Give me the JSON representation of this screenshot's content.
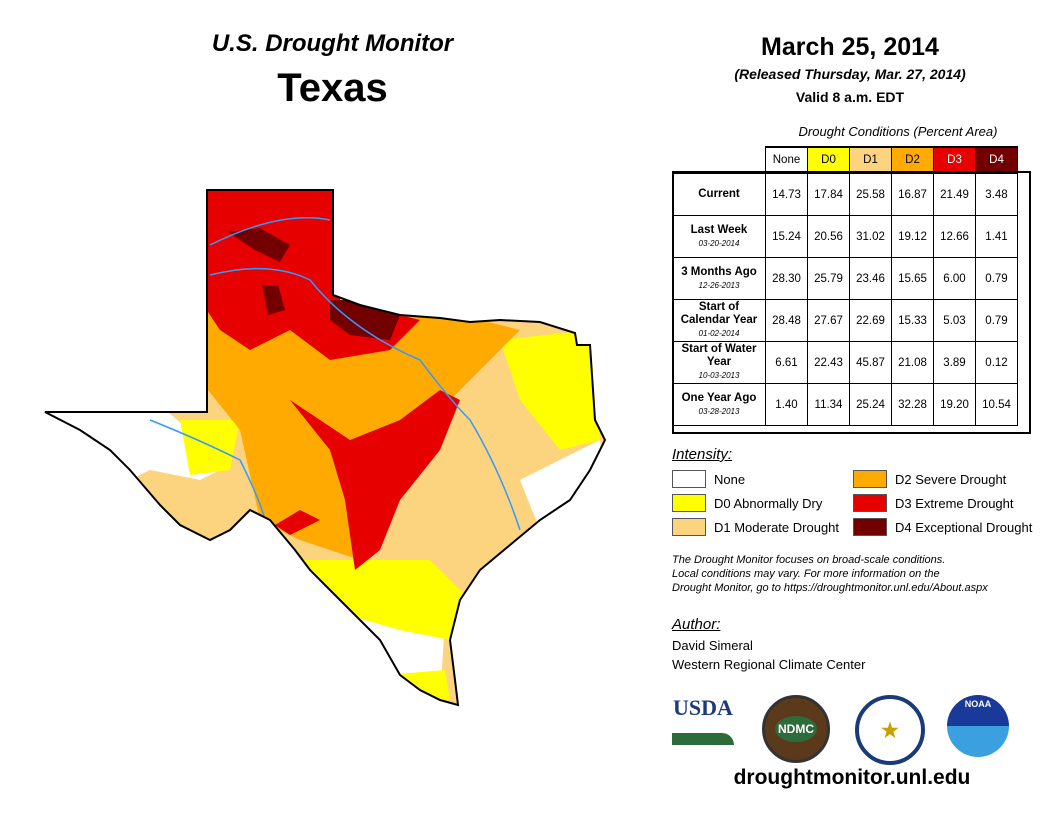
{
  "header": {
    "title": "U.S. Drought Monitor",
    "state": "Texas",
    "date": "March 25, 2014",
    "released": "(Released Thursday, Mar. 27, 2014)",
    "valid": "Valid 8 a.m. EDT"
  },
  "table": {
    "caption": "Drought Conditions (Percent Area)",
    "columns": [
      "None",
      "D0",
      "D1",
      "D2",
      "D3",
      "D4"
    ],
    "rows": [
      {
        "label": "Current",
        "date": "",
        "values": [
          "14.73",
          "17.84",
          "25.58",
          "16.87",
          "21.49",
          "3.48"
        ]
      },
      {
        "label": "Last Week",
        "date": "03-20-2014",
        "values": [
          "15.24",
          "20.56",
          "31.02",
          "19.12",
          "12.66",
          "1.41"
        ]
      },
      {
        "label": "3 Months Ago",
        "date": "12-26-2013",
        "values": [
          "28.30",
          "25.79",
          "23.46",
          "15.65",
          "6.00",
          "0.79"
        ]
      },
      {
        "label": "Start of Calendar Year",
        "date": "01-02-2014",
        "values": [
          "28.48",
          "27.67",
          "22.69",
          "15.33",
          "5.03",
          "0.79"
        ]
      },
      {
        "label": "Start of Water Year",
        "date": "10-03-2013",
        "values": [
          "6.61",
          "22.43",
          "45.87",
          "21.08",
          "3.89",
          "0.12"
        ]
      },
      {
        "label": "One Year Ago",
        "date": "03-28-2013",
        "values": [
          "1.40",
          "11.34",
          "25.24",
          "32.28",
          "19.20",
          "10.54"
        ]
      }
    ]
  },
  "legend": {
    "title": "Intensity:",
    "items": [
      {
        "label": "None",
        "color": "#ffffff"
      },
      {
        "label": "D0 Abnormally Dry",
        "color": "#ffff00"
      },
      {
        "label": "D1 Moderate Drought",
        "color": "#fcd37f"
      },
      {
        "label": "D2 Severe Drought",
        "color": "#ffaa00"
      },
      {
        "label": "D3 Extreme Drought",
        "color": "#e60000"
      },
      {
        "label": "D4 Exceptional Drought",
        "color": "#730000"
      }
    ]
  },
  "note": {
    "line1": "The Drought Monitor focuses on broad-scale conditions.",
    "line2": "Local conditions may vary. For more information on the",
    "line3": "Drought Monitor, go to https://droughtmonitor.unl.edu/About.aspx"
  },
  "author": {
    "title": "Author:",
    "name": "David Simeral",
    "org": "Western Regional Climate Center"
  },
  "logos": {
    "usda": "USDA",
    "ndmc": "NDMC",
    "noaa": "NOAA"
  },
  "url": "droughtmonitor.unl.edu"
}
